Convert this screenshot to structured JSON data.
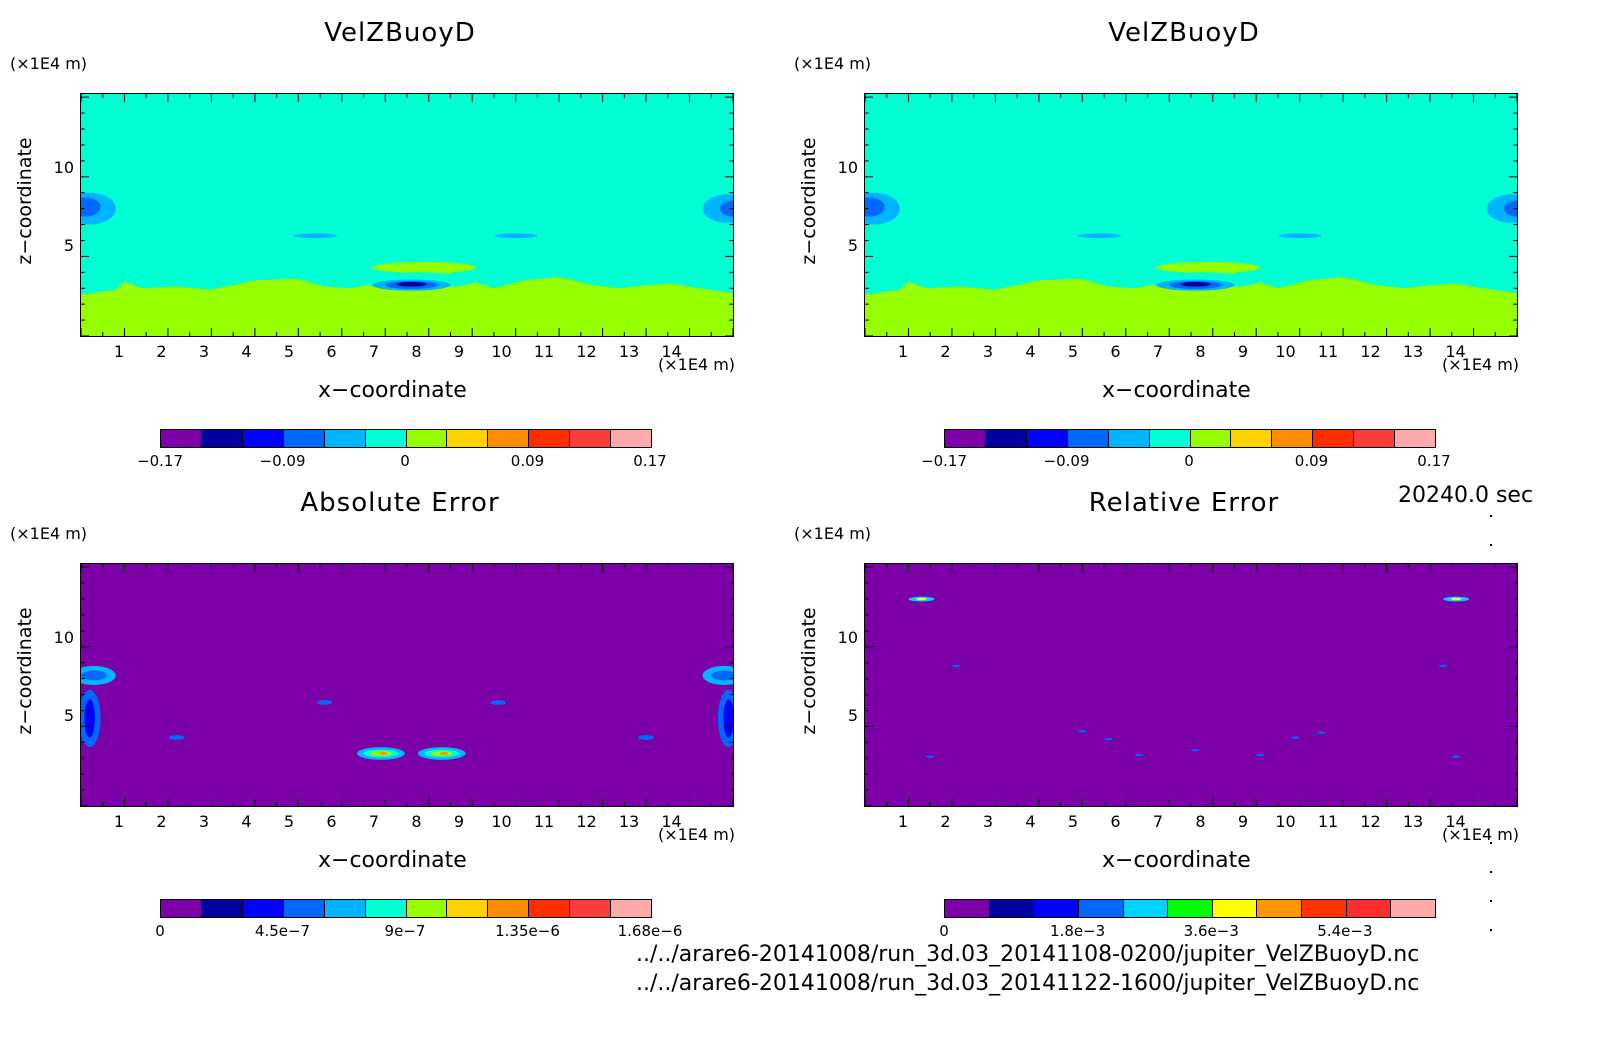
{
  "figure": {
    "time_label": "20240.0 sec",
    "file_paths": [
      "../../arare6-20141008/run_3d.03_20141108-0200/jupiter_VelZBuoyD.nc",
      "../../arare6-20141008/run_3d.03_20141122-1600/jupiter_VelZBuoyD.nc"
    ]
  },
  "panels": [
    {
      "title": "VelZBuoyD",
      "y_unit": "(×1E4 m)",
      "x_unit": "(×1E4 m)",
      "xlabel": "x−coordinate",
      "ylabel": "z−coordinate",
      "xticks": [
        "1",
        "2",
        "3",
        "4",
        "5",
        "6",
        "7",
        "8",
        "9",
        "10",
        "11",
        "12",
        "13",
        "14"
      ],
      "yticks": [
        "10",
        "5"
      ],
      "colorbar": {
        "colors": [
          "#7b00a8",
          "#0000a0",
          "#0000ff",
          "#0068ff",
          "#00b4ff",
          "#00ffd2",
          "#96ff00",
          "#ffd200",
          "#ff8c00",
          "#ff2d00",
          "#ff3c3c",
          "#ffaaaa"
        ],
        "tick_labels": [
          "−0.17",
          "−0.09",
          "0",
          "0.09",
          "0.17"
        ]
      }
    },
    {
      "title": "VelZBuoyD",
      "y_unit": "(×1E4 m)",
      "x_unit": "(×1E4 m)",
      "xlabel": "x−coordinate",
      "ylabel": "z−coordinate",
      "xticks": [
        "1",
        "2",
        "3",
        "4",
        "5",
        "6",
        "7",
        "8",
        "9",
        "10",
        "11",
        "12",
        "13",
        "14"
      ],
      "yticks": [
        "10",
        "5"
      ],
      "colorbar": {
        "colors": [
          "#7b00a8",
          "#0000a0",
          "#0000ff",
          "#0068ff",
          "#00b4ff",
          "#00ffd2",
          "#96ff00",
          "#ffd200",
          "#ff8c00",
          "#ff2d00",
          "#ff3c3c",
          "#ffaaaa"
        ],
        "tick_labels": [
          "−0.17",
          "−0.09",
          "0",
          "0.09",
          "0.17"
        ]
      }
    },
    {
      "title": "Absolute Error",
      "y_unit": "(×1E4 m)",
      "x_unit": "(×1E4 m)",
      "xlabel": "x−coordinate",
      "ylabel": "z−coordinate",
      "xticks": [
        "1",
        "2",
        "3",
        "4",
        "5",
        "6",
        "7",
        "8",
        "9",
        "10",
        "11",
        "12",
        "13",
        "14"
      ],
      "yticks": [
        "10",
        "5"
      ],
      "colorbar": {
        "colors": [
          "#7b00a8",
          "#0000a0",
          "#0000ff",
          "#0068ff",
          "#00b4ff",
          "#00ffd2",
          "#96ff00",
          "#ffd200",
          "#ff8c00",
          "#ff2d00",
          "#ff3c3c",
          "#ffaaaa"
        ],
        "tick_labels": [
          "0",
          "4.5e−7",
          "9e−7",
          "1.35e−6",
          "1.68e−6"
        ]
      }
    },
    {
      "title": "Relative Error",
      "y_unit": "(×1E4 m)",
      "x_unit": "(×1E4 m)",
      "xlabel": "x−coordinate",
      "ylabel": "z−coordinate",
      "xticks": [
        "1",
        "2",
        "3",
        "4",
        "5",
        "6",
        "7",
        "8",
        "9",
        "10",
        "11",
        "12",
        "13",
        "14"
      ],
      "yticks": [
        "10",
        "5"
      ],
      "colorbar": {
        "colors": [
          "#7b00a8",
          "#0000a0",
          "#0000ff",
          "#0068ff",
          "#00d2ff",
          "#00ff00",
          "#ffff00",
          "#ff9600",
          "#ff3200",
          "#ff2d2d",
          "#ffaaaa"
        ],
        "tick_labels": [
          "0",
          "1.8e−3",
          "3.6e−3",
          "5.4e−3"
        ]
      }
    }
  ],
  "chart_data": [
    {
      "type": "heatmap",
      "title": "VelZBuoyD",
      "xlabel": "x−coordinate",
      "ylabel": "z−coordinate",
      "x_range": [
        0,
        15
      ],
      "y_range": [
        0,
        15
      ],
      "value_range": [
        -0.17,
        0.17
      ],
      "levels": [
        -0.17,
        -0.09,
        0,
        0.09,
        0.17
      ],
      "description_of_field": "mostly ~0 (cyan) above z≈3; positive (green) below z≈3; small negative blobs near x≈0.2,z≈8; x≈7.5,z≈3.3; x≈5.5,z≈6.3; x≈10,z≈6.3"
    },
    {
      "type": "heatmap",
      "title": "VelZBuoyD",
      "xlabel": "x−coordinate",
      "ylabel": "z−coordinate",
      "x_range": [
        0,
        15
      ],
      "y_range": [
        0,
        15
      ],
      "value_range": [
        -0.17,
        0.17
      ],
      "levels": [
        -0.17,
        -0.09,
        0,
        0.09,
        0.17
      ]
    },
    {
      "type": "heatmap",
      "title": "Absolute Error",
      "xlabel": "x−coordinate",
      "ylabel": "z−coordinate",
      "x_range": [
        0,
        15
      ],
      "y_range": [
        0,
        15
      ],
      "value_range": [
        0,
        1.68e-06
      ],
      "levels": [
        0,
        4.5e-07,
        9e-07,
        1.35e-06,
        1.68e-06
      ]
    },
    {
      "type": "heatmap",
      "title": "Relative Error",
      "xlabel": "x−coordinate",
      "ylabel": "z−coordinate",
      "x_range": [
        0,
        15
      ],
      "y_range": [
        0,
        15
      ],
      "value_range": [
        0,
        0.0063
      ],
      "levels": [
        0,
        0.0018,
        0.0036,
        0.0054
      ]
    }
  ]
}
